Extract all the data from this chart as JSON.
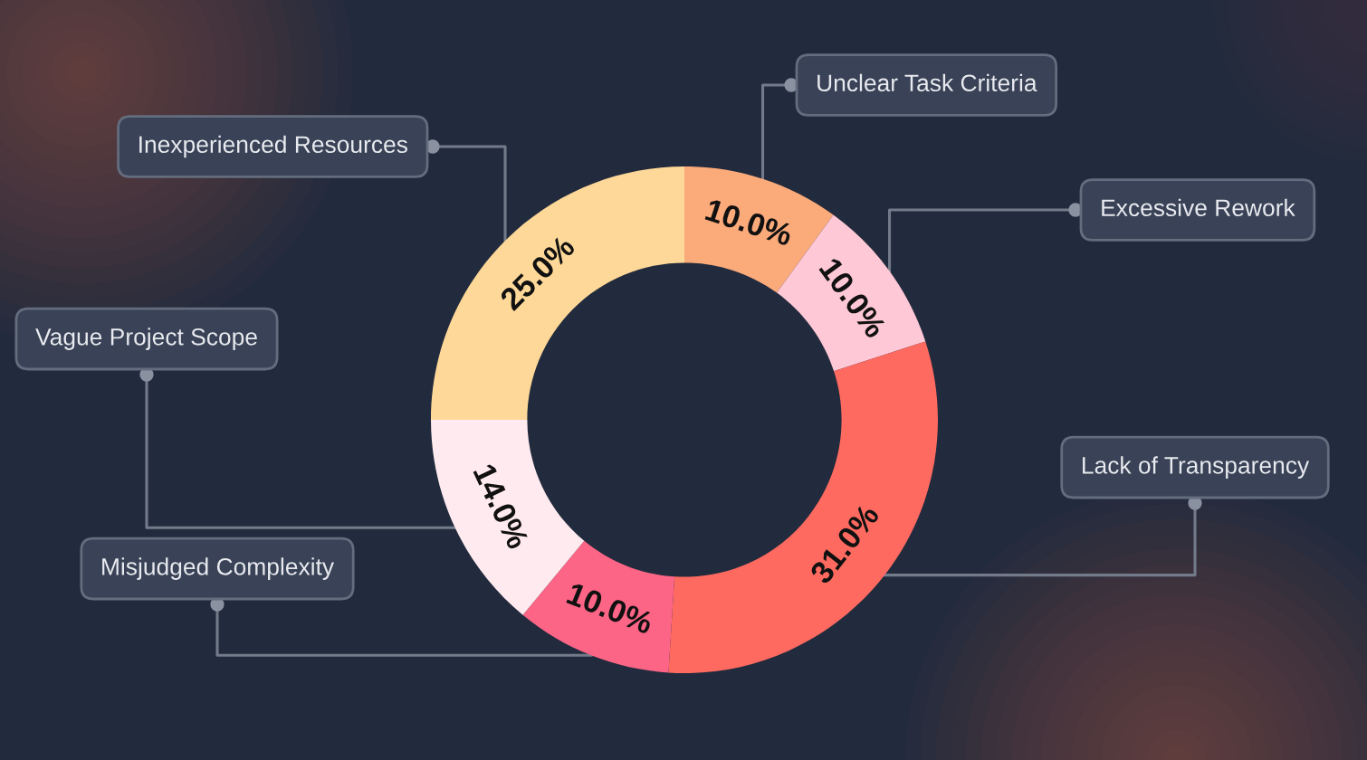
{
  "chart_data": {
    "type": "donut",
    "categories": [
      "Unclear Task Criteria",
      "Excessive Rework",
      "Lack of Transparency",
      "Misjudged Complexity",
      "Vague Project Scope",
      "Inexperienced Resources"
    ],
    "values": [
      10,
      10,
      31,
      10,
      14,
      25
    ],
    "colors": [
      "#fbaa7a",
      "#fec8d6",
      "#ff6a60",
      "#fd6586",
      "#ffeaef",
      "#fed898"
    ],
    "value_labels": [
      "10.0%",
      "10.0%",
      "31.0%",
      "10.0%",
      "14.0%",
      "25.0%"
    ]
  }
}
